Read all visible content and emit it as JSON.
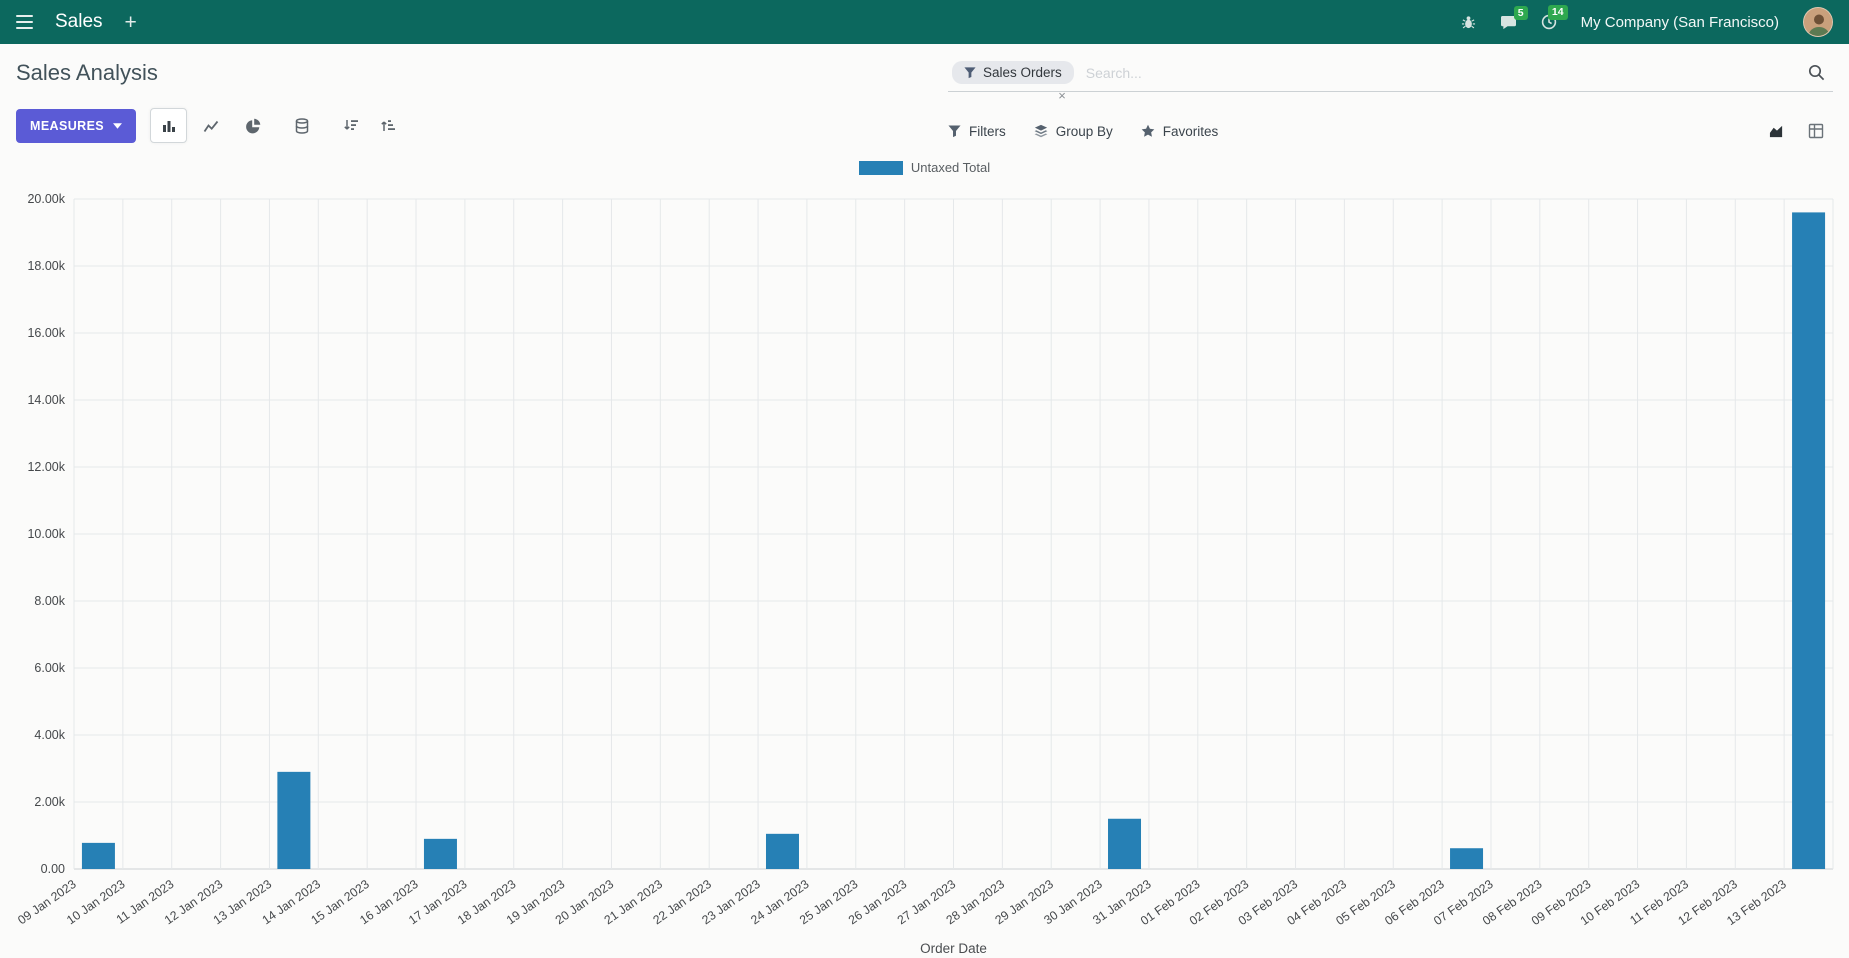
{
  "colors": {
    "navbar": "#0c685e",
    "primary": "#5b5bd6",
    "bar": "#2680b5",
    "badge": "#2ea84f"
  },
  "navbar": {
    "app_name": "Sales",
    "plus": "+",
    "messages_badge": "5",
    "activities_badge": "14",
    "company": "My Company (San Francisco)"
  },
  "control_panel": {
    "title": "Sales Analysis",
    "measures_label": "MEASURES",
    "search": {
      "facet_label": "Sales Orders",
      "remove_symbol": "×",
      "placeholder": "Search..."
    },
    "filters_label": "Filters",
    "group_by_label": "Group By",
    "favorites_label": "Favorites"
  },
  "chart_data": {
    "type": "bar",
    "title": "",
    "legend": [
      "Untaxed Total"
    ],
    "legend_position": "top-center",
    "xlabel": "Order Date",
    "ylabel": "",
    "ylim": [
      0,
      20000
    ],
    "grid": true,
    "bar_color": "#2680b5",
    "y_tick_values": [
      0,
      2000,
      4000,
      6000,
      8000,
      10000,
      12000,
      14000,
      16000,
      18000,
      20000
    ],
    "y_tick_labels": [
      "0.00",
      "2.00k",
      "4.00k",
      "6.00k",
      "8.00k",
      "10.00k",
      "12.00k",
      "14.00k",
      "16.00k",
      "18.00k",
      "20.00k"
    ],
    "categories": [
      "09 Jan 2023",
      "10 Jan 2023",
      "11 Jan 2023",
      "12 Jan 2023",
      "13 Jan 2023",
      "14 Jan 2023",
      "15 Jan 2023",
      "16 Jan 2023",
      "17 Jan 2023",
      "18 Jan 2023",
      "19 Jan 2023",
      "20 Jan 2023",
      "21 Jan 2023",
      "22 Jan 2023",
      "23 Jan 2023",
      "24 Jan 2023",
      "25 Jan 2023",
      "26 Jan 2023",
      "27 Jan 2023",
      "28 Jan 2023",
      "29 Jan 2023",
      "30 Jan 2023",
      "31 Jan 2023",
      "01 Feb 2023",
      "02 Feb 2023",
      "03 Feb 2023",
      "04 Feb 2023",
      "05 Feb 2023",
      "06 Feb 2023",
      "07 Feb 2023",
      "08 Feb 2023",
      "09 Feb 2023",
      "10 Feb 2023",
      "11 Feb 2023",
      "12 Feb 2023",
      "13 Feb 2023"
    ],
    "values": [
      780,
      0,
      0,
      0,
      2900,
      0,
      0,
      900,
      0,
      0,
      0,
      0,
      0,
      0,
      1050,
      0,
      0,
      0,
      0,
      0,
      0,
      1500,
      0,
      0,
      0,
      0,
      0,
      0,
      620,
      0,
      0,
      0,
      0,
      0,
      0,
      19600
    ]
  }
}
